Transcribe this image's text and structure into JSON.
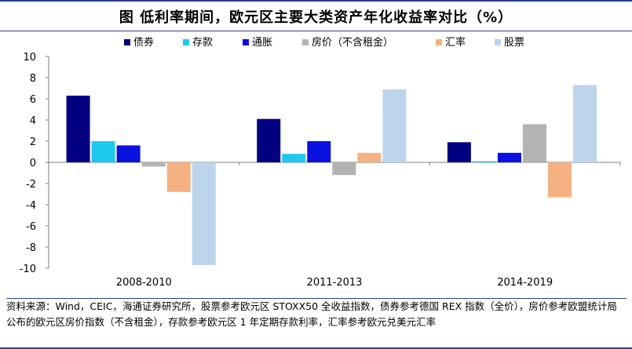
{
  "title": "图  低利率期间，欧元区主要大类资产年化收益率对比（%）",
  "source_note": "资料来源：Wind，CEIC，海通证券研究所，股票参考欧元区 STOXX50 全收益指数，债券参考德国 REX 指数（全价），房价参考欧盟统计局公布的欧元区房价指数（不含租金），存款参考欧元区 1 年定期存款利率，汇率参考欧元兑美元汇率",
  "chart_data": {
    "type": "bar",
    "title": "低利率期间，欧元区主要大类资产年化收益率对比（%）",
    "categories": [
      "2008-2010",
      "2011-2013",
      "2014-2019"
    ],
    "ylim": [
      -10,
      10
    ],
    "yticks": [
      -10,
      -8,
      -6,
      -4,
      -2,
      0,
      2,
      4,
      6,
      8,
      10
    ],
    "legend_position": "top",
    "series": [
      {
        "name": "债券",
        "color": "#000080",
        "values": [
          6.3,
          4.1,
          1.9
        ]
      },
      {
        "name": "存款",
        "color": "#1fc8ef",
        "values": [
          2.0,
          0.8,
          0.1
        ]
      },
      {
        "name": "通胀",
        "color": "#0b12e0",
        "values": [
          1.6,
          2.0,
          0.9
        ]
      },
      {
        "name": "房价（不含租金）",
        "color": "#b3b3b3",
        "values": [
          -0.4,
          -1.2,
          3.6
        ]
      },
      {
        "name": "汇率",
        "color": "#f6b183",
        "values": [
          -2.8,
          0.9,
          -3.3
        ]
      },
      {
        "name": "股票",
        "color": "#bcd5ec",
        "values": [
          -9.7,
          6.9,
          7.3
        ]
      }
    ]
  }
}
